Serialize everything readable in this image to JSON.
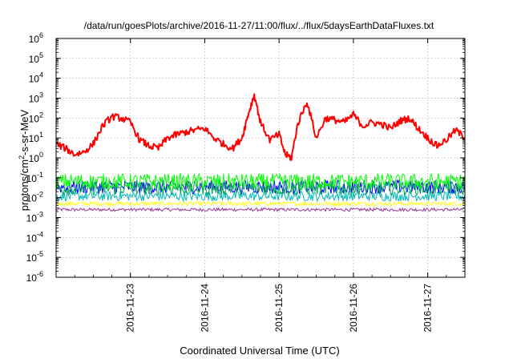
{
  "chart_data": {
    "type": "line",
    "title": "/data/run/goesPlots/archive/2016-11-27/11:00/flux/../flux/5daysEarthDataFluxes.txt",
    "xlabel": "Coordinated Universal Time (UTC)",
    "ylabel": "protons/cm2-s-sr-MeV",
    "y_scale": "log",
    "ylim": [
      1e-06,
      1000000.0
    ],
    "xlim": [
      "2016-11-22T00:00",
      "2016-11-27T12:00"
    ],
    "grid": true,
    "legend": "none",
    "y_ticks": [
      {
        "base": "10",
        "exp": "-6"
      },
      {
        "base": "10",
        "exp": "-5"
      },
      {
        "base": "10",
        "exp": "-4"
      },
      {
        "base": "10",
        "exp": "-3"
      },
      {
        "base": "10",
        "exp": "-2"
      },
      {
        "base": "10",
        "exp": "-1"
      },
      {
        "base": "10",
        "exp": "0"
      },
      {
        "base": "10",
        "exp": "1"
      },
      {
        "base": "10",
        "exp": "2"
      },
      {
        "base": "10",
        "exp": "3"
      },
      {
        "base": "10",
        "exp": "4"
      },
      {
        "base": "10",
        "exp": "5"
      },
      {
        "base": "10",
        "exp": "6"
      }
    ],
    "x_ticks": [
      "2016-11-23",
      "2016-11-24",
      "2016-11-25",
      "2016-11-26",
      "2016-11-27"
    ],
    "series": [
      {
        "color": "#ff0000",
        "style": "line",
        "x": [
          "2016-11-22T00:00",
          "2016-11-22T03:00",
          "2016-11-22T06:00",
          "2016-11-22T09:00",
          "2016-11-22T12:00",
          "2016-11-22T15:00",
          "2016-11-22T18:00",
          "2016-11-22T21:00",
          "2016-11-23T00:00",
          "2016-11-23T03:00",
          "2016-11-23T06:00",
          "2016-11-23T09:00",
          "2016-11-23T12:00",
          "2016-11-23T15:00",
          "2016-11-23T18:00",
          "2016-11-23T21:00",
          "2016-11-24T00:00",
          "2016-11-24T03:00",
          "2016-11-24T06:00",
          "2016-11-24T09:00",
          "2016-11-24T12:00",
          "2016-11-24T14:00",
          "2016-11-24T16:00",
          "2016-11-24T18:00",
          "2016-11-24T21:00",
          "2016-11-25T00:00",
          "2016-11-25T02:00",
          "2016-11-25T04:00",
          "2016-11-25T06:00",
          "2016-11-25T09:00",
          "2016-11-25T12:00",
          "2016-11-25T15:00",
          "2016-11-25T18:00",
          "2016-11-25T21:00",
          "2016-11-26T00:00",
          "2016-11-26T03:00",
          "2016-11-26T06:00",
          "2016-11-26T09:00",
          "2016-11-26T12:00",
          "2016-11-26T15:00",
          "2016-11-26T18:00",
          "2016-11-26T21:00",
          "2016-11-27T00:00",
          "2016-11-27T03:00",
          "2016-11-27T06:00",
          "2016-11-27T09:00",
          "2016-11-27T12:00"
        ],
        "y": [
          5,
          3,
          1.5,
          2,
          5,
          40,
          120,
          100,
          60,
          8,
          4,
          3,
          10,
          15,
          20,
          25,
          30,
          10,
          5,
          3,
          10,
          150,
          1500,
          60,
          8,
          15,
          1.5,
          1,
          50,
          700,
          10,
          100,
          80,
          60,
          150,
          40,
          60,
          50,
          30,
          70,
          100,
          30,
          10,
          4,
          8,
          25,
          10
        ]
      },
      {
        "color": "#00ff00",
        "style": "noisy-band",
        "center": 0.065,
        "spread": 0.4
      },
      {
        "color": "#00aa55",
        "style": "noisy-band",
        "center": 0.03,
        "spread": 0.35
      },
      {
        "color": "#0000ff",
        "style": "noisy-band",
        "center": 0.035,
        "spread": 0.35
      },
      {
        "color": "#00bbbb",
        "style": "noisy-band",
        "center": 0.012,
        "spread": 0.25
      },
      {
        "color": "#ffff00",
        "style": "noisy-band",
        "center": 0.005,
        "spread": 0.1
      },
      {
        "color": "#993399",
        "style": "noisy-band",
        "center": 0.0025,
        "spread": 0.08
      }
    ]
  }
}
